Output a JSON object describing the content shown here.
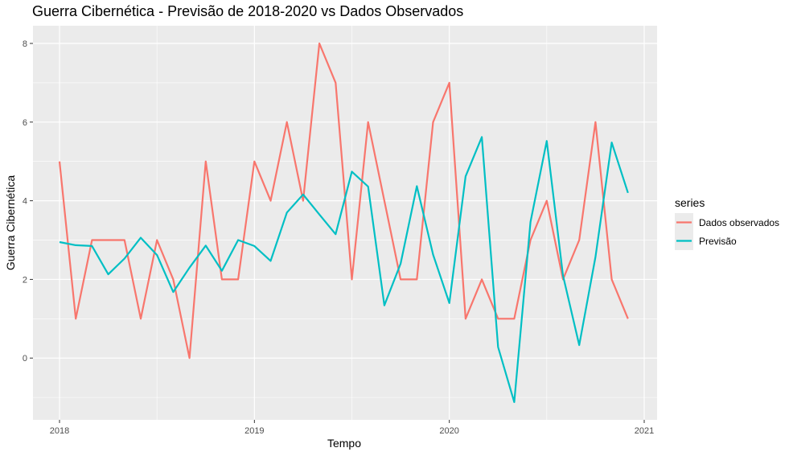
{
  "chart_data": {
    "type": "line",
    "title": "Guerra Cibernética - Previsão de 2018-2020 vs Dados Observados",
    "xlabel": "Tempo",
    "ylabel": "Guerra Cibernética",
    "xlim": [
      2017.86,
      2021.04
    ],
    "ylim": [
      -1.12,
      8.0
    ],
    "x_ticks": [
      2018,
      2019,
      2020,
      2021
    ],
    "x_tick_labels": [
      "2018",
      "2019",
      "2020",
      "2021"
    ],
    "y_ticks": [
      0,
      2,
      4,
      6,
      8
    ],
    "y_tick_labels": [
      "0",
      "2",
      "4",
      "6",
      "8"
    ],
    "grid": true,
    "legend": {
      "title": "series",
      "position": "right"
    },
    "x": [
      2018.0,
      2018.0833,
      2018.1667,
      2018.25,
      2018.3333,
      2018.4167,
      2018.5,
      2018.5833,
      2018.6667,
      2018.75,
      2018.8333,
      2018.9167,
      2019.0,
      2019.0833,
      2019.1667,
      2019.25,
      2019.3333,
      2019.4167,
      2019.5,
      2019.5833,
      2019.6667,
      2019.75,
      2019.8333,
      2019.9167,
      2020.0,
      2020.0833,
      2020.1667,
      2020.25,
      2020.3333,
      2020.4167,
      2020.5,
      2020.5833,
      2020.6667,
      2020.75,
      2020.8333,
      2020.9167
    ],
    "series": [
      {
        "name": "Dados observados",
        "color": "#F8766D",
        "values": [
          5,
          1,
          3,
          3,
          3,
          1,
          3,
          2,
          0,
          5,
          2,
          2,
          5,
          4,
          6,
          4,
          8,
          7,
          2,
          6,
          4,
          2,
          2,
          6,
          7,
          1,
          2,
          1,
          1,
          3,
          4,
          2,
          3,
          6,
          2,
          1
        ]
      },
      {
        "name": "Previsão",
        "color": "#00BFC4",
        "values": [
          2.95,
          2.87,
          2.85,
          2.13,
          2.53,
          3.06,
          2.62,
          1.68,
          2.3,
          2.86,
          2.22,
          3.0,
          2.85,
          2.47,
          3.7,
          4.16,
          3.65,
          3.15,
          4.74,
          4.36,
          1.34,
          2.4,
          4.37,
          2.63,
          1.4,
          4.62,
          5.62,
          0.28,
          -1.12,
          3.46,
          5.52,
          2.1,
          0.33,
          2.57,
          5.48,
          4.2
        ]
      }
    ]
  }
}
